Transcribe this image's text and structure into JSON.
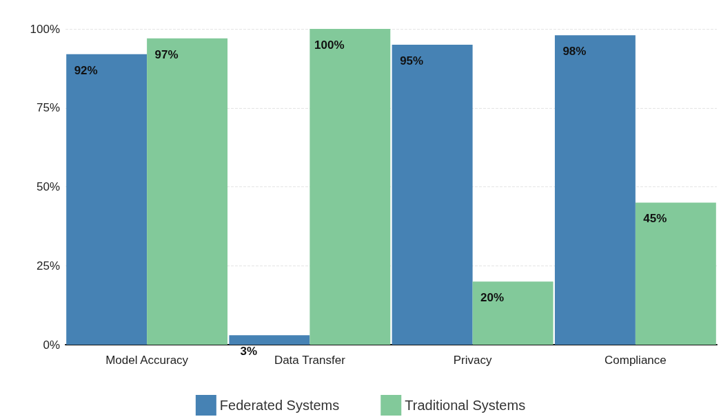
{
  "chart_data": {
    "type": "bar",
    "categories": [
      "Model Accuracy",
      "Data Transfer",
      "Privacy",
      "Compliance"
    ],
    "series": [
      {
        "name": "Federated Systems",
        "color": "#4682b4",
        "values": [
          92,
          3,
          95,
          98
        ],
        "value_labels": [
          "92%",
          "3%",
          "95%",
          "98%"
        ]
      },
      {
        "name": "Traditional Systems",
        "color": "#82c99a",
        "values": [
          97,
          100,
          20,
          45
        ],
        "value_labels": [
          "97%",
          "100%",
          "20%",
          "45%"
        ]
      }
    ],
    "ylim": [
      0,
      100
    ],
    "yticks": [
      {
        "value": 0,
        "label": "0%"
      },
      {
        "value": 25,
        "label": "25%"
      },
      {
        "value": 50,
        "label": "50%"
      },
      {
        "value": 75,
        "label": "75%"
      },
      {
        "value": 100,
        "label": "100%"
      }
    ],
    "grid": "y",
    "legend": "bottom"
  }
}
